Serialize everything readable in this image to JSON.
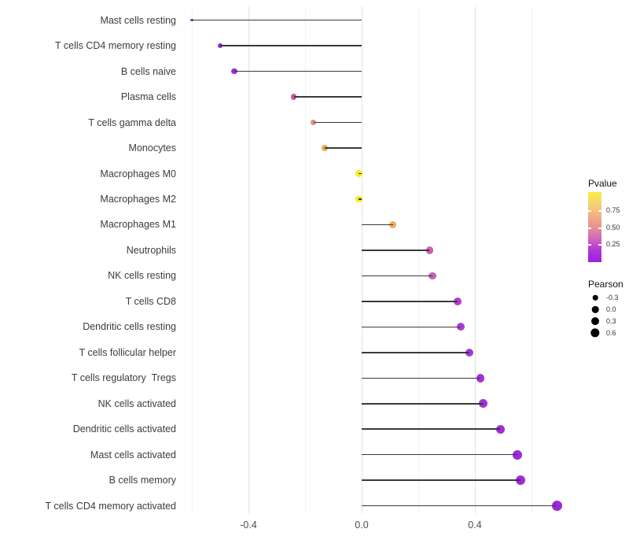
{
  "chart_data": {
    "type": "scatter",
    "variant": "lollipop",
    "orientation": "horizontal",
    "title": "",
    "xlabel": "",
    "ylabel": "",
    "grid": "vertical-only",
    "baseline_value": 0,
    "xlim": [
      -0.64,
      0.73
    ],
    "x_ticks": [
      {
        "value": -0.4,
        "label": "-0.4"
      },
      {
        "value": 0.0,
        "label": "0.0"
      },
      {
        "value": 0.4,
        "label": "0.4"
      }
    ],
    "x_minor_ticks": [
      -0.6,
      -0.2,
      0.2,
      0.6
    ],
    "points": [
      {
        "label": "Mast cells resting",
        "pearson": -0.6,
        "dot_color": "#9330CE",
        "dot_diameter": 3.2
      },
      {
        "label": "T cells CD4 memory resting",
        "pearson": -0.5,
        "dot_color": "#8F2BD0",
        "dot_diameter": 6.6
      },
      {
        "label": "B cells naive",
        "pearson": -0.45,
        "dot_color": "#9430D2",
        "dot_diameter": 7.4
      },
      {
        "label": "Plasma cells",
        "pearson": -0.24,
        "dot_color": "#C458A6",
        "dot_diameter": 7.4
      },
      {
        "label": "T cells gamma delta",
        "pearson": -0.17,
        "dot_color": "#E08D80",
        "dot_diameter": 7.4
      },
      {
        "label": "Monocytes",
        "pearson": -0.13,
        "dot_color": "#F0A95E",
        "dot_diameter": 7.8
      },
      {
        "label": "Macrophages M0",
        "pearson": -0.01,
        "dot_color": "#F8EC1C",
        "dot_diameter": 9.4
      },
      {
        "label": "Macrophages M2",
        "pearson": -0.01,
        "dot_color": "#F8EC1C",
        "dot_diameter": 8.8
      },
      {
        "label": "Macrophages M1",
        "pearson": 0.11,
        "dot_color": "#F0A85C",
        "dot_diameter": 9.2
      },
      {
        "label": "Neutrophils",
        "pearson": 0.24,
        "dot_color": "#C962AE",
        "dot_diameter": 9.4
      },
      {
        "label": "NK cells resting",
        "pearson": 0.25,
        "dot_color": "#C463B6",
        "dot_diameter": 9.6
      },
      {
        "label": "T cells CD8",
        "pearson": 0.34,
        "dot_color": "#B13ED2",
        "dot_diameter": 10.0
      },
      {
        "label": "Dendritic cells resting",
        "pearson": 0.35,
        "dot_color": "#AC3BD2",
        "dot_diameter": 10.2
      },
      {
        "label": "T cells follicular helper",
        "pearson": 0.38,
        "dot_color": "#A836D4",
        "dot_diameter": 10.4
      },
      {
        "label": "T cells regulatory  Tregs",
        "pearson": 0.42,
        "dot_color": "#A431D6",
        "dot_diameter": 10.6
      },
      {
        "label": "NK cells activated",
        "pearson": 0.43,
        "dot_color": "#A431D6",
        "dot_diameter": 10.8
      },
      {
        "label": "Dendritic cells activated",
        "pearson": 0.49,
        "dot_color": "#A02DD8",
        "dot_diameter": 11.2
      },
      {
        "label": "Mast cells activated",
        "pearson": 0.55,
        "dot_color": "#9D2BDA",
        "dot_diameter": 11.8
      },
      {
        "label": "B cells memory",
        "pearson": 0.56,
        "dot_color": "#9D2BDA",
        "dot_diameter": 12.2
      },
      {
        "label": "T cells CD4 memory activated",
        "pearson": 0.69,
        "dot_color": "#9B28DC",
        "dot_diameter": 13.2
      }
    ],
    "legend": {
      "pvalue": {
        "title": "Pvalue",
        "tick_labels": [
          "0.75",
          "0.50",
          "0.25"
        ],
        "gradient_stops": [
          "#FBEA3E",
          "#F6D375",
          "#F0B183",
          "#E59293",
          "#D166B9",
          "#AE36D9",
          "#9C20DC"
        ],
        "position": "right"
      },
      "pearson": {
        "title": "Pearson",
        "items": [
          {
            "label": "-0.3",
            "diameter": 6.6
          },
          {
            "label": "0.0",
            "diameter": 8.6
          },
          {
            "label": "0.3",
            "diameter": 10.0
          },
          {
            "label": "0.6",
            "diameter": 11.4
          }
        ],
        "dot_color": "#000000",
        "position": "right"
      }
    }
  }
}
